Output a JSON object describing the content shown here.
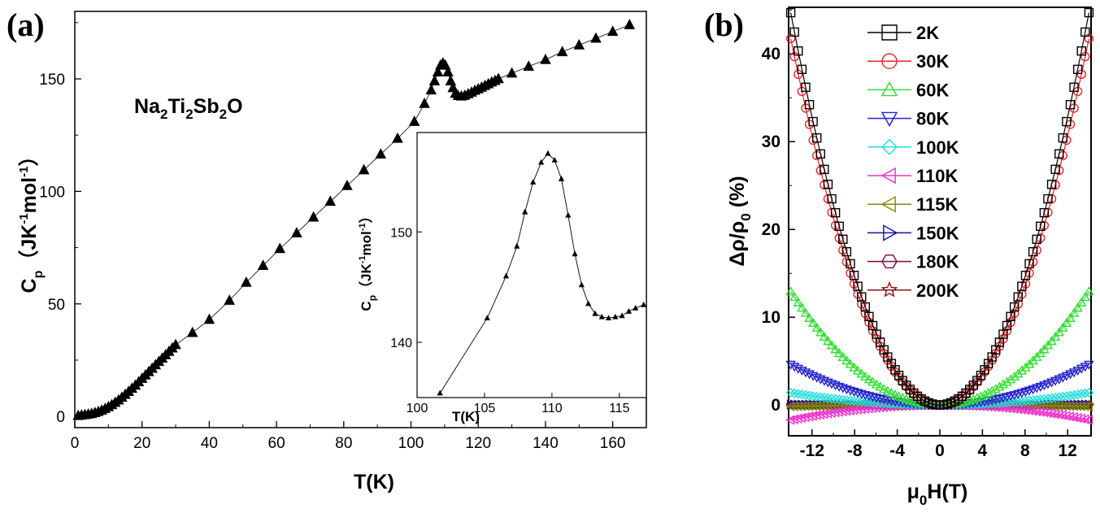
{
  "chart_data": [
    {
      "panel_label": "(a)",
      "type": "scatter",
      "title": "",
      "annotation": {
        "base": [
          "Na",
          "Ti",
          "Sb",
          "O"
        ],
        "subs": [
          "2",
          "2",
          "2",
          ""
        ]
      },
      "xlabel": "T(K)",
      "ylabel": {
        "main": "C",
        "sub": "p",
        "unit_open": "（JK",
        "sup1": "-1",
        "mid": "mol",
        "sup2": "-1",
        "unit_close": "）"
      },
      "xlim": [
        0,
        170
      ],
      "ylim": [
        -5,
        180
      ],
      "xticks": [
        0,
        20,
        40,
        60,
        80,
        100,
        120,
        140,
        160
      ],
      "yticks": [
        0,
        50,
        100,
        150
      ],
      "marker": "filled-triangle",
      "series": [
        {
          "name": "Cp",
          "x": [
            1,
            2,
            3,
            4,
            5,
            6,
            7,
            8,
            9,
            10,
            11,
            12,
            13,
            14,
            15,
            16,
            17,
            18,
            19,
            20,
            21,
            22,
            23,
            24,
            25,
            26,
            27,
            28,
            29,
            30,
            35,
            40,
            46,
            51,
            56,
            61,
            66,
            71,
            76,
            81,
            86,
            91,
            96,
            101,
            104,
            106,
            107,
            108,
            108.8,
            109.5,
            110.2,
            111,
            111.8,
            112.5,
            113.2,
            114,
            115,
            116,
            117,
            118,
            119,
            120,
            121,
            122,
            123,
            124,
            125,
            126,
            130,
            135,
            140,
            145,
            150,
            155,
            160,
            165
          ],
          "y": [
            0.3,
            0.5,
            0.7,
            0.9,
            1.2,
            1.6,
            2.1,
            2.7,
            3.4,
            4.2,
            5.1,
            6.1,
            7.2,
            8.4,
            9.7,
            11,
            12.4,
            13.8,
            15.3,
            16.8,
            18.3,
            19.8,
            21.3,
            22.8,
            24.3,
            25.8,
            27.3,
            28.8,
            30.3,
            31.8,
            37.2,
            43,
            51.5,
            59.5,
            67,
            74.5,
            81.5,
            88.5,
            95.5,
            102.5,
            109.5,
            116.5,
            123.5,
            131,
            139,
            145,
            149,
            153,
            156,
            157,
            156,
            153,
            149,
            146,
            143.5,
            142.5,
            142.3,
            142.6,
            143.3,
            144,
            144.8,
            145.5,
            146.2,
            147,
            147.7,
            148.5,
            149.2,
            150,
            152.5,
            155.5,
            158.5,
            162,
            165,
            168,
            171,
            174
          ]
        }
      ],
      "inset": {
        "xlabel": "T(K)",
        "ylabel": {
          "main": "C",
          "sub": "p",
          "unit_open": "（JK",
          "sup1": "-1",
          "mid": "mol",
          "sup2": "-1",
          "unit_close": "）"
        },
        "xlim": [
          100,
          117
        ],
        "ylim": [
          135,
          159
        ],
        "xticks": [
          100,
          105,
          110,
          115
        ],
        "yticks": [
          140,
          150
        ],
        "x": [
          101.7,
          105.2,
          106.6,
          107.4,
          108.0,
          108.6,
          109.2,
          109.7,
          110.2,
          110.7,
          111.2,
          111.7,
          112.2,
          112.7,
          113.2,
          113.7,
          114.2,
          114.7,
          115.2,
          115.7,
          116.2,
          116.8
        ],
        "y": [
          135.4,
          142.2,
          146.0,
          148.7,
          151.8,
          154.5,
          156.3,
          157.1,
          156.5,
          154.8,
          151.5,
          148.0,
          145.2,
          143.5,
          142.6,
          142.3,
          142.2,
          142.3,
          142.4,
          142.8,
          143.1,
          143.4
        ]
      }
    },
    {
      "panel_label": "(b)",
      "type": "scatter",
      "title": "",
      "xlabel": {
        "main": "μ",
        "sub": "0",
        "rest": "H(T)"
      },
      "ylabel": {
        "main": "Δρ/ρ",
        "sub": "0",
        "rest": " (%)"
      },
      "xlim": [
        -14.2,
        14.2
      ],
      "ylim": [
        -3.5,
        45.3
      ],
      "xticks": [
        -12,
        -8,
        -4,
        0,
        4,
        8,
        12
      ],
      "yticks": [
        0,
        10,
        20,
        30,
        40
      ],
      "legend_position": "top-center",
      "series": [
        {
          "name": "2K",
          "color": "#000000",
          "marker": "square",
          "coef": 0.228
        },
        {
          "name": "30K",
          "color": "#e8262a",
          "marker": "circle",
          "coef": 0.213
        },
        {
          "name": "60K",
          "color": "#33dd33",
          "marker": "triangle-up",
          "coef": 0.066
        },
        {
          "name": "80K",
          "color": "#2222cc",
          "marker": "triangle-down",
          "coef": 0.0235
        },
        {
          "name": "100K",
          "color": "#22dddd",
          "marker": "diamond",
          "coef": 0.0072
        },
        {
          "name": "110K",
          "color": "#ee33cc",
          "marker": "triangle-left",
          "coef": -0.0087
        },
        {
          "name": "115K",
          "color": "#888800",
          "marker": "triangle-left",
          "coef": -0.0008
        },
        {
          "name": "150K",
          "color": "#1111aa",
          "marker": "triangle-right",
          "coef": 0.0003
        },
        {
          "name": "180K",
          "color": "#880044",
          "marker": "hexagon",
          "coef": 0.0001
        },
        {
          "name": "200K",
          "color": "#881111",
          "marker": "star",
          "coef": 0.0
        }
      ]
    }
  ]
}
